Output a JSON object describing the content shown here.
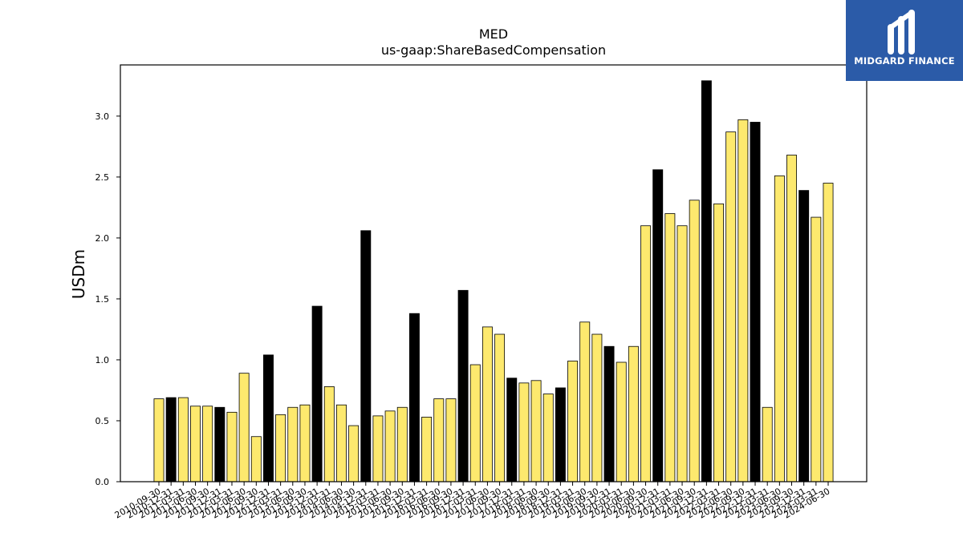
{
  "chart_data": {
    "type": "bar",
    "title": "MED",
    "subtitle": "us-gaap:ShareBasedCompensation",
    "xlabel": "",
    "ylabel": "USDm",
    "ylim": [
      0,
      3.42
    ],
    "yticks": [
      "0.0",
      "0.5",
      "1.0",
      "1.5",
      "2.0",
      "2.5",
      "3.0"
    ],
    "grid": false,
    "categories": [
      "2010-09-30",
      "2010-12-31",
      "2011-03-31",
      "2011-06-30",
      "2011-09-30",
      "2011-12-31",
      "2012-03-31",
      "2012-06-30",
      "2012-09-30",
      "2012-12-31",
      "2013-03-31",
      "2013-06-30",
      "2013-09-30",
      "2013-12-31",
      "2014-03-31",
      "2014-06-30",
      "2014-09-30",
      "2014-12-31",
      "2015-03-31",
      "2015-06-30",
      "2015-09-30",
      "2015-12-31",
      "2016-03-31",
      "2016-06-30",
      "2016-09-30",
      "2016-12-31",
      "2017-03-31",
      "2017-06-30",
      "2017-09-30",
      "2017-12-31",
      "2018-03-31",
      "2018-06-30",
      "2018-09-30",
      "2018-12-31",
      "2019-03-31",
      "2019-06-30",
      "2019-09-30",
      "2019-12-31",
      "2020-03-31",
      "2020-06-30",
      "2020-09-30",
      "2020-12-31",
      "2021-03-31",
      "2021-06-30",
      "2021-09-30",
      "2021-12-31",
      "2022-03-31",
      "2022-06-30",
      "2022-09-30",
      "2022-12-31",
      "2023-03-31",
      "2023-06-30",
      "2023-09-30",
      "2023-12-31",
      "2024-03-31",
      "2024-06-30"
    ],
    "values": [
      0.68,
      0.69,
      0.69,
      0.62,
      0.62,
      0.61,
      0.57,
      0.89,
      0.37,
      1.04,
      0.55,
      0.61,
      0.63,
      1.44,
      0.78,
      0.63,
      0.46,
      2.06,
      0.54,
      0.58,
      0.61,
      1.38,
      0.53,
      0.68,
      0.68,
      1.57,
      0.96,
      1.27,
      1.21,
      0.85,
      0.81,
      0.83,
      0.72,
      0.77,
      0.99,
      1.31,
      1.21,
      1.11,
      0.98,
      1.11,
      2.1,
      2.56,
      2.2,
      2.1,
      2.31,
      3.29,
      2.28,
      2.87,
      2.97,
      2.95,
      0.61,
      2.51,
      2.68,
      2.39,
      2.17,
      2.45
    ],
    "annual_color": "#000000",
    "quarter_color": "#fde96e",
    "annual_categories": [
      "2010-12-31",
      "2011-12-31",
      "2012-12-31",
      "2013-12-31",
      "2014-12-31",
      "2015-12-31",
      "2016-12-31",
      "2017-12-31",
      "2018-12-31",
      "2019-12-31",
      "2020-12-31",
      "2021-12-31",
      "2022-12-31",
      "2023-12-31"
    ]
  },
  "logo": {
    "text": "MIDGARD FINANCE",
    "color": "#2b5ba8"
  }
}
